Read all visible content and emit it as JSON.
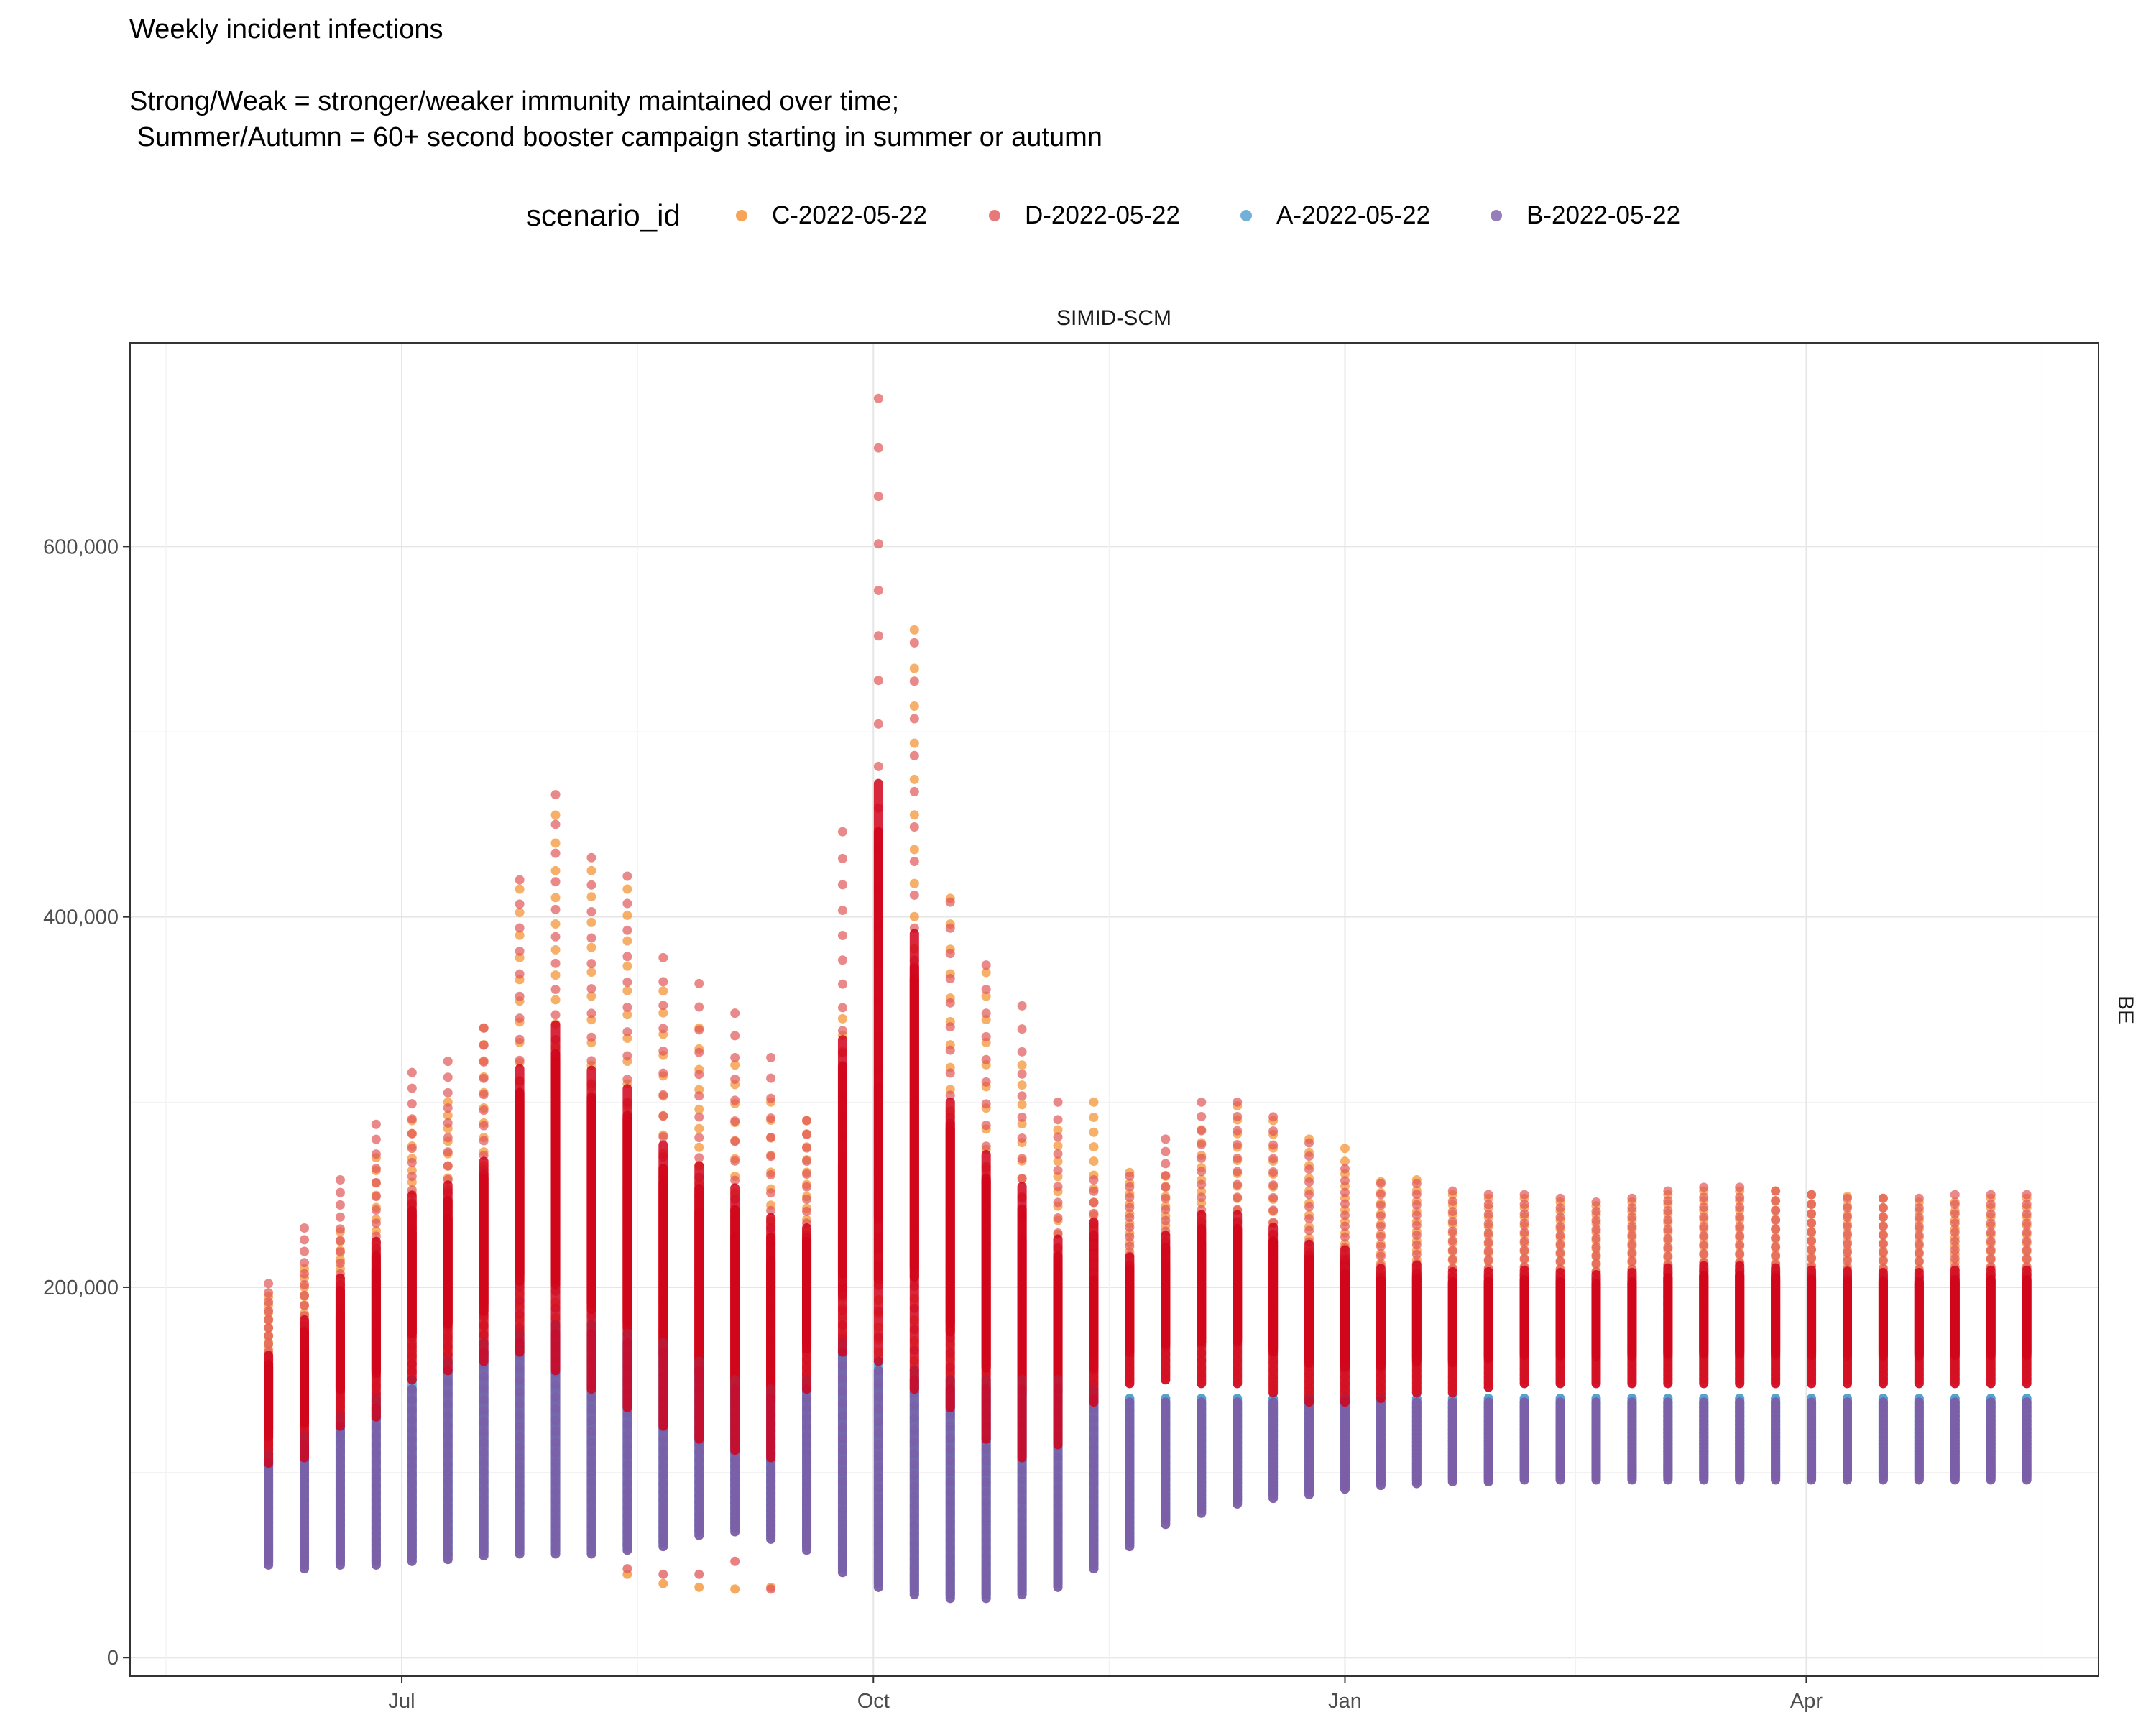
{
  "chart_data": {
    "type": "scatter",
    "title": "Weekly incident infections",
    "subtitle_lines": [
      "Strong/Weak = stronger/weaker immunity maintained over time;",
      " Summer/Autumn = 60+ second booster campaign starting in summer or autumn"
    ],
    "facet_top_label": "SIMID-SCM",
    "facet_right_label": "BE",
    "legend_title": "scenario_id",
    "legend_position": "top",
    "grid": true,
    "x_axis": {
      "type": "date",
      "range": [
        "2022-05-09",
        "2023-05-28"
      ],
      "ticks": [
        {
          "value": "2022-07-01",
          "label": "Jul"
        },
        {
          "value": "2022-10-01",
          "label": "Oct"
        },
        {
          "value": "2023-01-01",
          "label": "Jan"
        },
        {
          "value": "2023-04-01",
          "label": "Apr"
        }
      ]
    },
    "y_axis": {
      "range": [
        -10000,
        710000
      ],
      "ticks": [
        {
          "value": 0,
          "label": "0"
        },
        {
          "value": 200000,
          "label": "200,000"
        },
        {
          "value": 400000,
          "label": "400,000"
        },
        {
          "value": 600000,
          "label": "600,000"
        }
      ]
    },
    "x": [
      "2022-06-05",
      "2022-06-12",
      "2022-06-19",
      "2022-06-26",
      "2022-07-03",
      "2022-07-10",
      "2022-07-17",
      "2022-07-24",
      "2022-07-31",
      "2022-08-07",
      "2022-08-14",
      "2022-08-21",
      "2022-08-28",
      "2022-09-04",
      "2022-09-11",
      "2022-09-18",
      "2022-09-25",
      "2022-10-02",
      "2022-10-09",
      "2022-10-16",
      "2022-10-23",
      "2022-10-30",
      "2022-11-06",
      "2022-11-13",
      "2022-11-20",
      "2022-11-27",
      "2022-12-04",
      "2022-12-11",
      "2022-12-18",
      "2022-12-25",
      "2023-01-01",
      "2023-01-08",
      "2023-01-15",
      "2023-01-22",
      "2023-01-29",
      "2023-02-05",
      "2023-02-12",
      "2023-02-19",
      "2023-02-26",
      "2023-03-05",
      "2023-03-12",
      "2023-03-19",
      "2023-03-26",
      "2023-04-02",
      "2023-04-09",
      "2023-04-16",
      "2023-04-23",
      "2023-04-30",
      "2023-05-07",
      "2023-05-14"
    ],
    "series": [
      {
        "name": "C-2022-05-22",
        "color": "#F28E2B",
        "min": [
          110000,
          112000,
          130000,
          135000,
          155000,
          160000,
          165000,
          170000,
          160000,
          150000,
          140000,
          130000,
          120000,
          115000,
          110000,
          150000,
          170000,
          165000,
          150000,
          140000,
          120000,
          110000,
          118000,
          140000,
          150000,
          152000,
          150000,
          150000,
          145000,
          140000,
          140000,
          142000,
          145000,
          145000,
          148000,
          150000,
          150000,
          150000,
          150000,
          150000,
          150000,
          150000,
          150000,
          150000,
          150000,
          150000,
          150000,
          150000,
          150000,
          150000
        ],
        "max": [
          195000,
          210000,
          230000,
          270000,
          290000,
          300000,
          340000,
          415000,
          455000,
          425000,
          415000,
          360000,
          340000,
          320000,
          300000,
          290000,
          345000,
          425000,
          555000,
          410000,
          370000,
          320000,
          285000,
          300000,
          262000,
          260000,
          285000,
          298000,
          290000,
          280000,
          275000,
          257000,
          258000,
          250000,
          248000,
          248000,
          246000,
          244000,
          246000,
          250000,
          252000,
          252000,
          252000,
          250000,
          249000,
          248000,
          246000,
          246000,
          248000,
          248000
        ],
        "extra_low": [
          0,
          0,
          0,
          0,
          0,
          0,
          0,
          0,
          0,
          0,
          45000,
          40000,
          38000,
          37000,
          38000,
          60000,
          0,
          45000,
          42000,
          0,
          75000,
          80000,
          90000,
          0,
          0,
          0,
          0,
          0,
          0,
          0,
          0,
          0,
          0,
          0,
          0,
          0,
          0,
          0,
          0,
          0,
          0,
          0,
          0,
          0,
          0,
          0,
          0,
          0,
          0,
          0
        ]
      },
      {
        "name": "D-2022-05-22",
        "color": "#E15759",
        "min": [
          105000,
          108000,
          125000,
          130000,
          150000,
          155000,
          160000,
          165000,
          155000,
          145000,
          135000,
          125000,
          118000,
          112000,
          108000,
          145000,
          165000,
          160000,
          145000,
          135000,
          118000,
          108000,
          115000,
          138000,
          148000,
          150000,
          148000,
          148000,
          143000,
          138000,
          138000,
          140000,
          143000,
          143000,
          146000,
          148000,
          148000,
          148000,
          148000,
          148000,
          148000,
          148000,
          148000,
          148000,
          148000,
          148000,
          148000,
          148000,
          148000,
          148000
        ],
        "max": [
          202000,
          232000,
          258000,
          288000,
          316000,
          322000,
          340000,
          420000,
          466000,
          432000,
          422000,
          378000,
          364000,
          348000,
          324000,
          290000,
          446000,
          680000,
          548000,
          408000,
          374000,
          352000,
          300000,
          258000,
          260000,
          280000,
          300000,
          300000,
          292000,
          278000,
          264000,
          256000,
          256000,
          252000,
          250000,
          250000,
          248000,
          246000,
          248000,
          252000,
          254000,
          254000,
          252000,
          250000,
          248000,
          248000,
          248000,
          250000,
          250000,
          250000
        ],
        "extra_low": [
          0,
          0,
          0,
          0,
          0,
          0,
          0,
          0,
          0,
          0,
          48000,
          45000,
          45000,
          52000,
          37000,
          62000,
          0,
          50000,
          48000,
          45000,
          45000,
          48000,
          50000,
          55000,
          0,
          0,
          0,
          0,
          0,
          0,
          0,
          0,
          0,
          0,
          0,
          0,
          0,
          0,
          0,
          0,
          0,
          0,
          0,
          0,
          0,
          0,
          0,
          0,
          0,
          0
        ]
      },
      {
        "name": "A-2022-05-22",
        "color": "#4E9ECF",
        "min": [
          52000,
          50000,
          52000,
          52000,
          54000,
          55000,
          57000,
          58000,
          58000,
          58000,
          60000,
          62000,
          68000,
          70000,
          66000,
          60000,
          48000,
          40000,
          36000,
          34000,
          34000,
          36000,
          40000,
          50000,
          62000,
          75000,
          80000,
          85000,
          88000,
          90000,
          93000,
          95000,
          96000,
          97000,
          97000,
          98000,
          98000,
          98000,
          98000,
          98000,
          98000,
          98000,
          98000,
          98000,
          98000,
          98000,
          98000,
          98000,
          98000,
          98000
        ],
        "max": [
          110000,
          120000,
          130000,
          140000,
          150000,
          160000,
          170000,
          175000,
          180000,
          180000,
          175000,
          170000,
          160000,
          150000,
          145000,
          150000,
          170000,
          160000,
          155000,
          150000,
          150000,
          150000,
          150000,
          145000,
          140000,
          140000,
          140000,
          140000,
          140000,
          140000,
          140000,
          140000,
          140000,
          140000,
          140000,
          140000,
          140000,
          140000,
          140000,
          140000,
          140000,
          140000,
          140000,
          140000,
          140000,
          140000,
          140000,
          140000,
          140000,
          140000
        ],
        "extra_low": []
      },
      {
        "name": "B-2022-05-22",
        "color": "#7B5EA7",
        "min": [
          50000,
          48000,
          50000,
          50000,
          52000,
          53000,
          55000,
          56000,
          56000,
          56000,
          58000,
          60000,
          66000,
          68000,
          64000,
          58000,
          46000,
          38000,
          34000,
          32000,
          32000,
          34000,
          38000,
          48000,
          60000,
          72000,
          78000,
          83000,
          86000,
          88000,
          91000,
          93000,
          94000,
          95000,
          95000,
          96000,
          96000,
          96000,
          96000,
          96000,
          96000,
          96000,
          96000,
          96000,
          96000,
          96000,
          96000,
          96000,
          96000,
          96000
        ],
        "max": [
          105000,
          115000,
          125000,
          135000,
          145000,
          155000,
          165000,
          170000,
          175000,
          175000,
          170000,
          165000,
          155000,
          145000,
          140000,
          145000,
          165000,
          155000,
          150000,
          145000,
          145000,
          145000,
          145000,
          140000,
          138000,
          138000,
          138000,
          138000,
          138000,
          138000,
          138000,
          138000,
          138000,
          138000,
          138000,
          138000,
          138000,
          138000,
          138000,
          138000,
          138000,
          138000,
          138000,
          138000,
          138000,
          138000,
          138000,
          138000,
          138000,
          138000
        ],
        "extra_low": []
      }
    ]
  }
}
